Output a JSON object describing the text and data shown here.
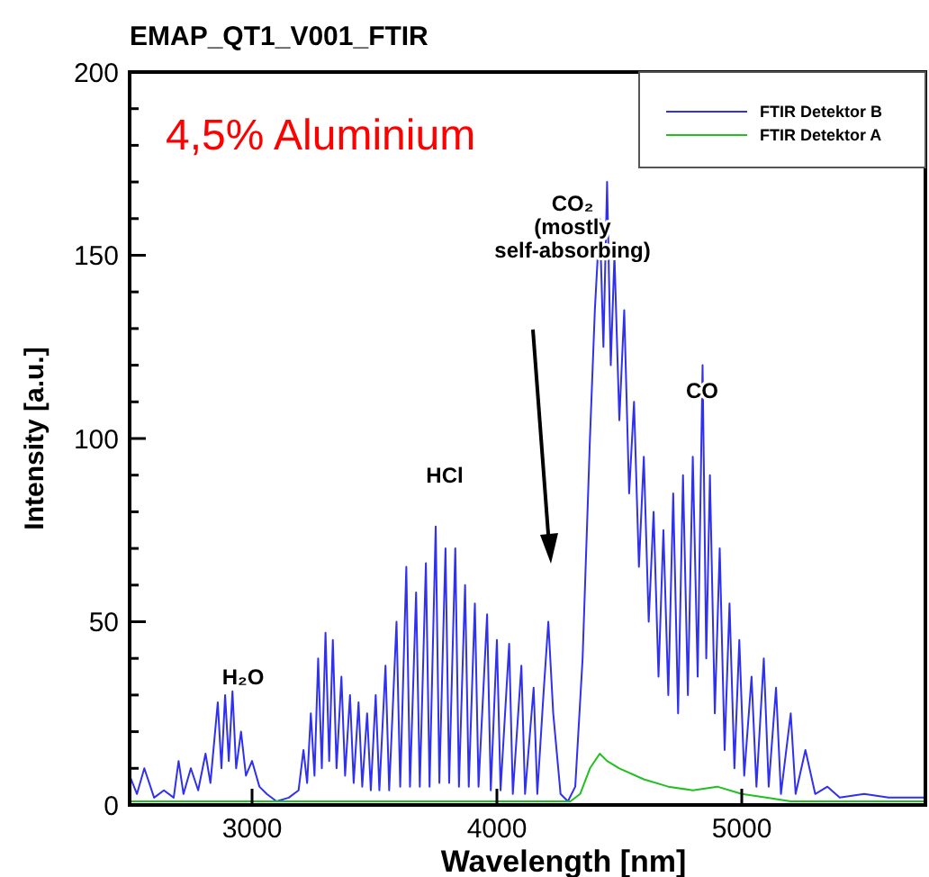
{
  "chart_data": {
    "type": "line",
    "title": "EMAP_QT1_V001_FTIR",
    "xlabel": "Wavelength [nm]",
    "ylabel": "Intensity [a.u.]",
    "xlim": [
      2500,
      5750
    ],
    "xticks": [
      3000,
      4000,
      5000
    ],
    "ylim": [
      0,
      200
    ],
    "yticks": [
      0,
      {
        "value": 10,
        "label": null
      },
      {
        "value": 20,
        "label": null
      },
      {
        "value": 30,
        "label": null
      },
      {
        "value": 40,
        "label": null
      },
      50,
      {
        "value": 60,
        "label": null
      },
      {
        "value": 70,
        "label": null
      },
      {
        "value": 80,
        "label": null
      },
      {
        "value": 90,
        "label": null
      },
      100,
      {
        "value": 110,
        "label": null
      },
      {
        "value": 120,
        "label": null
      },
      {
        "value": 130,
        "label": null
      },
      {
        "value": 140,
        "label": null
      },
      150,
      {
        "value": 160,
        "label": null
      },
      {
        "value": 170,
        "label": null
      },
      {
        "value": 180,
        "label": null
      },
      {
        "value": 190,
        "label": null
      },
      200
    ],
    "grid": false,
    "legend": "top right",
    "marker": "none",
    "line_style": "solid",
    "annotations": [
      "4,5% Aluminium",
      "H₂O",
      "HCl",
      "CO₂\n(mostly\nself-absorbing)",
      "CO"
    ],
    "series": [
      {
        "name": "FTIR Detektor B",
        "color": "#3030f0",
        "x": [
          2500,
          2530,
          2560,
          2600,
          2640,
          2680,
          2700,
          2720,
          2750,
          2780,
          2810,
          2830,
          2860,
          2875,
          2890,
          2905,
          2920,
          2935,
          2955,
          2975,
          3000,
          3030,
          3060,
          3100,
          3150,
          3190,
          3210,
          3225,
          3240,
          3255,
          3270,
          3285,
          3300,
          3315,
          3330,
          3345,
          3365,
          3380,
          3400,
          3415,
          3435,
          3450,
          3470,
          3485,
          3505,
          3520,
          3545,
          3560,
          3590,
          3605,
          3630,
          3645,
          3670,
          3685,
          3710,
          3725,
          3750,
          3765,
          3790,
          3805,
          3830,
          3845,
          3870,
          3885,
          3910,
          3925,
          3960,
          3975,
          4000,
          4015,
          4050,
          4065,
          4100,
          4115,
          4150,
          4165,
          4190,
          4210,
          4230,
          4260,
          4290,
          4320,
          4350,
          4380,
          4400,
          4420,
          4435,
          4450,
          4465,
          4480,
          4500,
          4520,
          4540,
          4560,
          4580,
          4600,
          4620,
          4640,
          4660,
          4680,
          4700,
          4720,
          4740,
          4760,
          4780,
          4800,
          4820,
          4840,
          4855,
          4870,
          4890,
          4910,
          4930,
          4950,
          4970,
          4990,
          5010,
          5040,
          5060,
          5090,
          5110,
          5140,
          5160,
          5200,
          5220,
          5260,
          5300,
          5350,
          5400,
          5500,
          5600,
          5750
        ],
        "values": [
          8,
          3,
          10,
          2,
          4,
          2,
          12,
          3,
          10,
          4,
          14,
          6,
          28,
          10,
          30,
          12,
          31,
          10,
          20,
          8,
          12,
          5,
          3,
          1,
          2,
          4,
          15,
          6,
          25,
          8,
          40,
          10,
          47,
          12,
          45,
          10,
          35,
          8,
          30,
          6,
          28,
          5,
          25,
          4,
          30,
          4,
          38,
          4,
          50,
          5,
          65,
          5,
          58,
          5,
          66,
          5,
          76,
          6,
          70,
          6,
          70,
          5,
          60,
          5,
          55,
          5,
          52,
          4,
          45,
          4,
          44,
          3,
          38,
          3,
          32,
          3,
          30,
          50,
          25,
          3,
          1,
          5,
          40,
          100,
          135,
          160,
          125,
          170,
          120,
          150,
          105,
          135,
          85,
          110,
          65,
          95,
          50,
          80,
          35,
          75,
          30,
          85,
          25,
          90,
          30,
          95,
          35,
          120,
          40,
          90,
          25,
          70,
          15,
          55,
          10,
          45,
          8,
          35,
          5,
          40,
          5,
          32,
          3,
          25,
          3,
          15,
          3,
          5,
          2,
          3,
          2,
          2
        ]
      },
      {
        "name": "FTIR Detektor A",
        "color": "#20c020",
        "x": [
          2500,
          4300,
          4340,
          4380,
          4420,
          4450,
          4500,
          4600,
          4700,
          4800,
          4900,
          5000,
          5100,
          5200,
          5750
        ],
        "values": [
          1,
          1,
          3,
          10,
          14,
          12,
          10,
          7,
          5,
          4,
          5,
          3,
          2,
          1,
          1
        ]
      }
    ]
  }
}
